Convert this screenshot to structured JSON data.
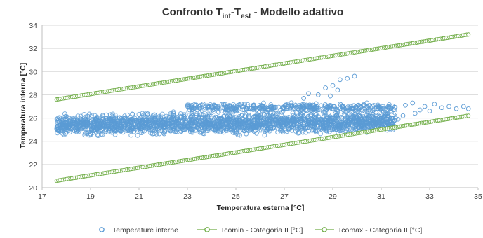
{
  "chart_data": {
    "type": "scatter",
    "title": {
      "prefix": "Confronto T",
      "sub1": "int",
      "mid": "-T",
      "sub2": "est",
      "suffix": "  - Modello adattivo"
    },
    "xlabel": "Temperatura esterna [°C]",
    "ylabel": "Temperatura interna [°C]",
    "xlim": [
      17,
      35
    ],
    "ylim": [
      20,
      34
    ],
    "xticks": [
      17,
      19,
      21,
      23,
      25,
      27,
      29,
      31,
      33,
      35
    ],
    "yticks": [
      20,
      22,
      24,
      26,
      28,
      30,
      32,
      34
    ],
    "grid": "horizontal",
    "legend_position": "bottom",
    "series": [
      {
        "name": "Temperature interne",
        "color": "#5b9bd5",
        "marker": "circle-open",
        "clouds": [
          {
            "x_min": 17.6,
            "x_max": 31.6,
            "y_base": 24.2,
            "y_slope": 0.02,
            "y_spread": 2.4,
            "count": 2200
          },
          {
            "x_min": 23.0,
            "x_max": 31.6,
            "y_base": 26.4,
            "y_slope": 0.0,
            "y_spread": 1.0,
            "count": 400
          }
        ],
        "points": [
          [
            27.8,
            27.7
          ],
          [
            28.0,
            28.1
          ],
          [
            28.4,
            28.0
          ],
          [
            28.7,
            28.6
          ],
          [
            29.0,
            28.8
          ],
          [
            29.3,
            29.3
          ],
          [
            29.6,
            29.4
          ],
          [
            29.9,
            29.6
          ],
          [
            29.2,
            28.4
          ],
          [
            28.9,
            27.9
          ],
          [
            32.0,
            27.1
          ],
          [
            32.3,
            27.3
          ],
          [
            32.6,
            26.7
          ],
          [
            32.8,
            27.0
          ],
          [
            33.2,
            27.2
          ],
          [
            33.5,
            26.9
          ],
          [
            33.8,
            27.0
          ],
          [
            34.1,
            26.8
          ],
          [
            34.4,
            27.0
          ],
          [
            34.6,
            26.8
          ],
          [
            32.4,
            26.4
          ],
          [
            33.0,
            26.6
          ],
          [
            31.9,
            26.2
          ],
          [
            31.7,
            25.9
          ],
          [
            31.5,
            25.7
          ]
        ]
      },
      {
        "name": "Tcomin - Categoria II [°C]",
        "color": "#70ad47",
        "marker": "circle-open-line",
        "line": {
          "x_start": 17.6,
          "x_end": 34.6,
          "y_start": 20.6,
          "y_end": 26.2,
          "count": 240
        }
      },
      {
        "name": "Tcomax - Categoria II [°C]",
        "color": "#70ad47",
        "marker": "circle-open-line",
        "line": {
          "x_start": 17.6,
          "x_end": 34.6,
          "y_start": 27.6,
          "y_end": 33.2,
          "count": 240
        }
      }
    ]
  }
}
